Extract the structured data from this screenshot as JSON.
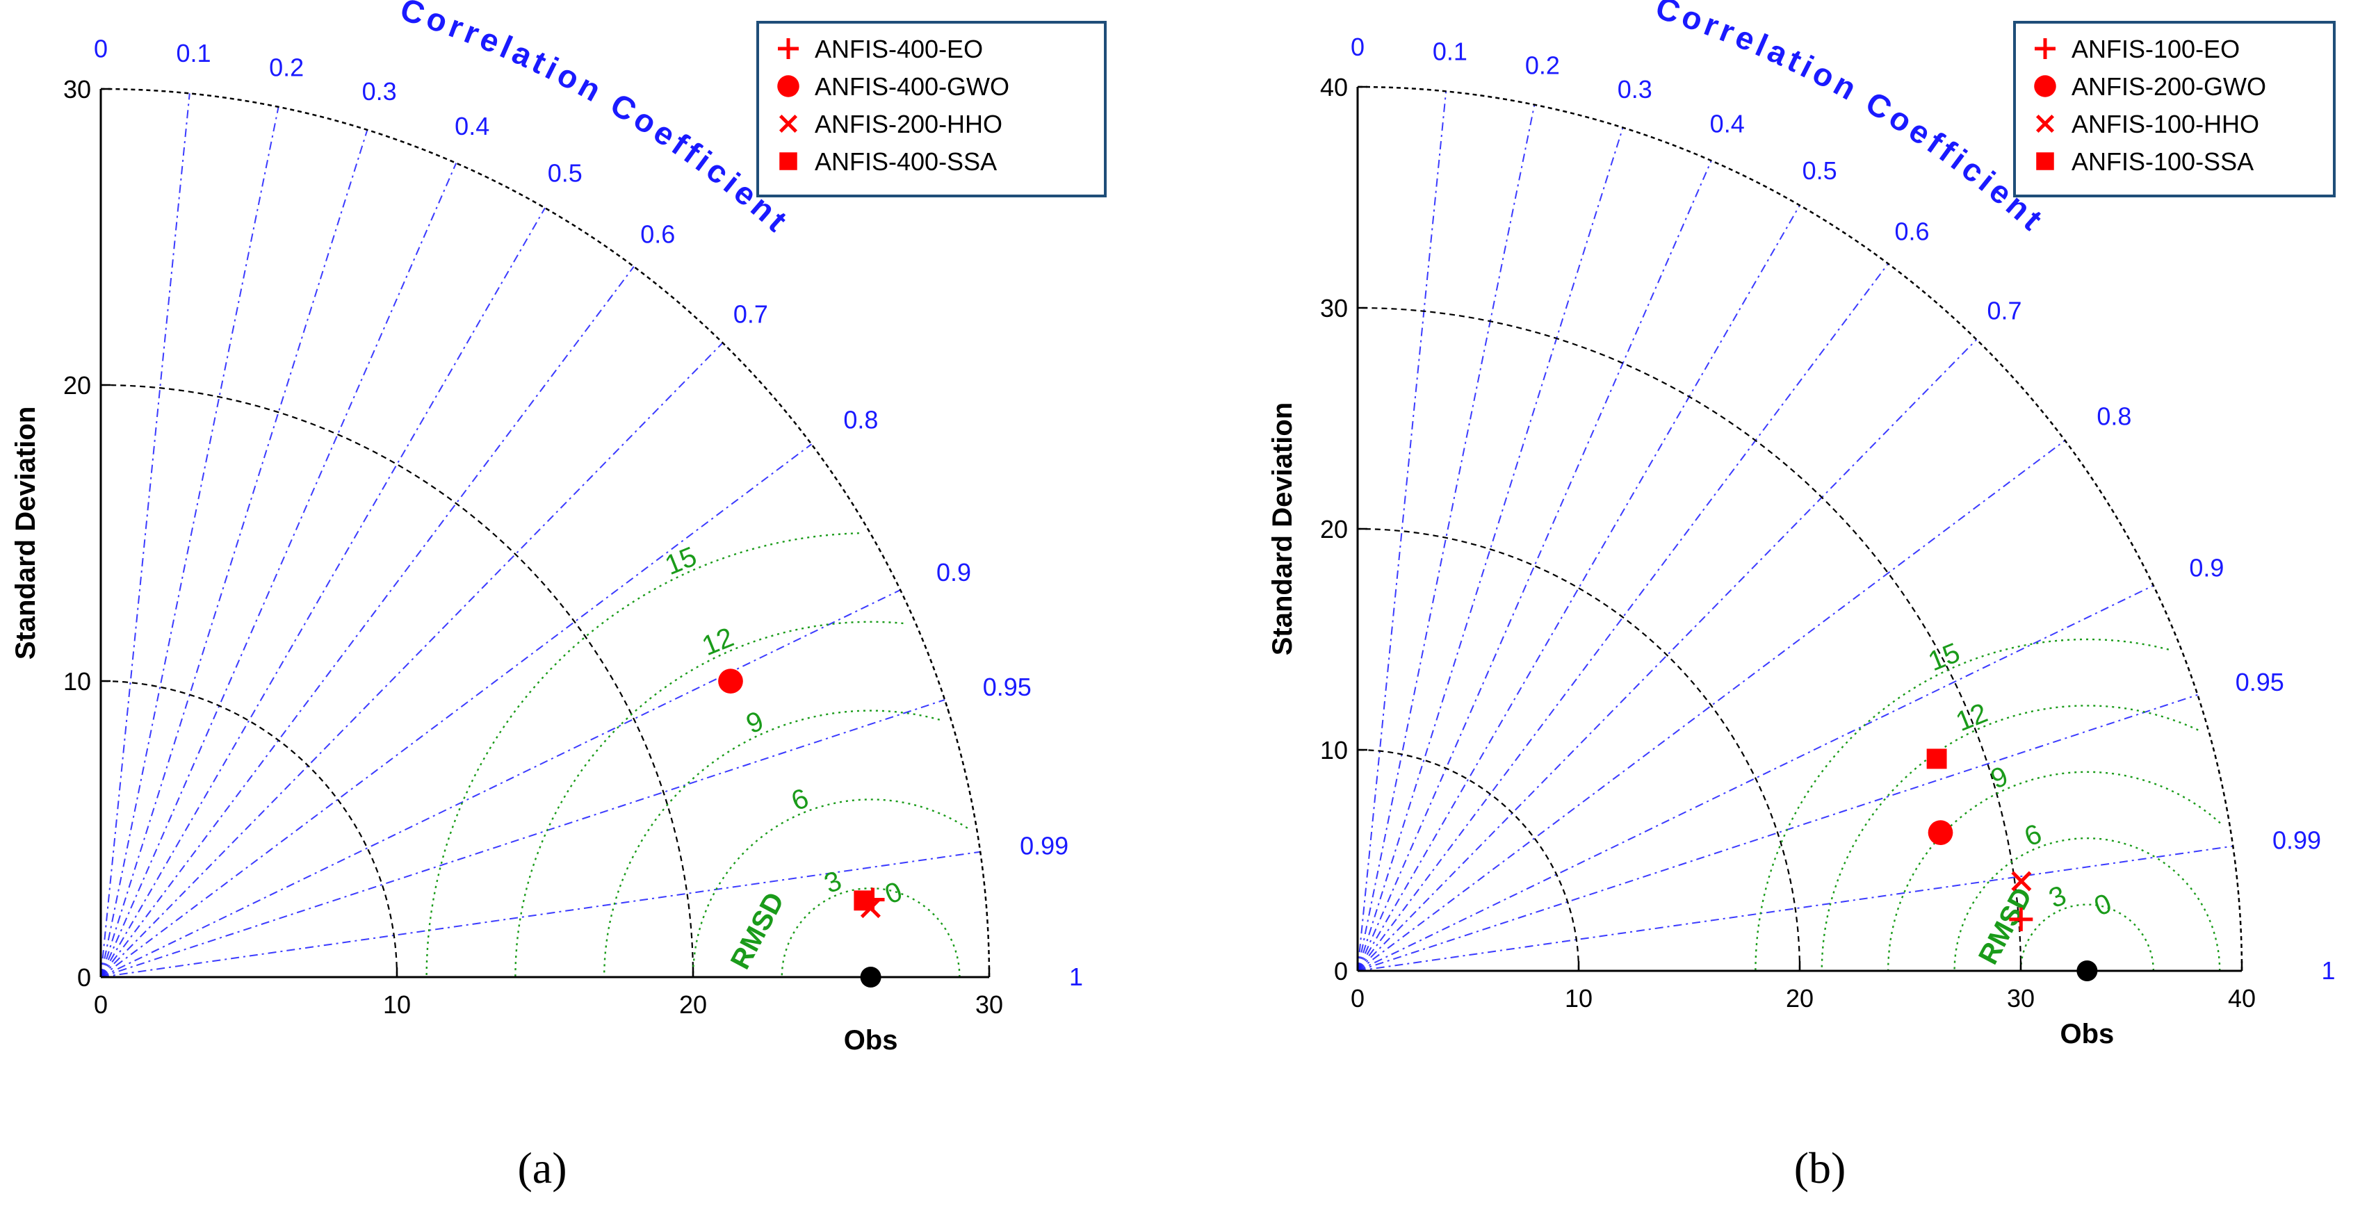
{
  "chart_data": [
    {
      "type": "scatter",
      "subtype": "taylor-diagram",
      "caption": "(a)",
      "ylabel": "Standard Deviation",
      "xlabel": "Obs",
      "std_max": 30,
      "std_ticks": [
        0,
        10,
        20,
        30
      ],
      "obs_std": 26,
      "corr_title": "Correlation Coefficient",
      "corr_ticks": [
        0,
        0.1,
        0.2,
        0.3,
        0.4,
        0.5,
        0.6,
        0.7,
        0.8,
        0.9,
        0.95,
        0.99,
        1
      ],
      "rmsd_title": "RMSD",
      "rmsd_levels": [
        0,
        3,
        6,
        9,
        12,
        15
      ],
      "models": [
        {
          "name": "ANFIS-400-EO",
          "marker": "plus",
          "std": 26.2,
          "corr": 0.995
        },
        {
          "name": "ANFIS-400-GWO",
          "marker": "circle",
          "std": 23.5,
          "corr": 0.905
        },
        {
          "name": "ANFIS-200-HHO",
          "marker": "x",
          "std": 26.1,
          "corr": 0.996
        },
        {
          "name": "ANFIS-400-SSA",
          "marker": "square",
          "std": 25.9,
          "corr": 0.995
        }
      ]
    },
    {
      "type": "scatter",
      "subtype": "taylor-diagram",
      "caption": "(b)",
      "ylabel": "Standard Deviation",
      "xlabel": "Obs",
      "std_max": 40,
      "std_ticks": [
        0,
        10,
        20,
        30,
        40
      ],
      "obs_std": 33,
      "corr_title": "Correlation Coefficient",
      "corr_ticks": [
        0,
        0.1,
        0.2,
        0.3,
        0.4,
        0.5,
        0.6,
        0.7,
        0.8,
        0.9,
        0.95,
        0.99,
        1
      ],
      "rmsd_title": "RMSD",
      "rmsd_levels": [
        0,
        3,
        6,
        9,
        12,
        15
      ],
      "models": [
        {
          "name": "ANFIS-100-EO",
          "marker": "plus",
          "std": 30.1,
          "corr": 0.997
        },
        {
          "name": "ANFIS-200-GWO",
          "marker": "circle",
          "std": 27.1,
          "corr": 0.973
        },
        {
          "name": "ANFIS-100-HHO",
          "marker": "x",
          "std": 30.3,
          "corr": 0.991
        },
        {
          "name": "ANFIS-100-SSA",
          "marker": "square",
          "std": 27.9,
          "corr": 0.939
        }
      ]
    }
  ],
  "colors": {
    "model": "#ff0000",
    "obs": "#000000",
    "corr": "#1a1aff",
    "rmsd": "#1a9b1a",
    "std_arc": "#000000",
    "legend_border": "#1f4e79"
  }
}
